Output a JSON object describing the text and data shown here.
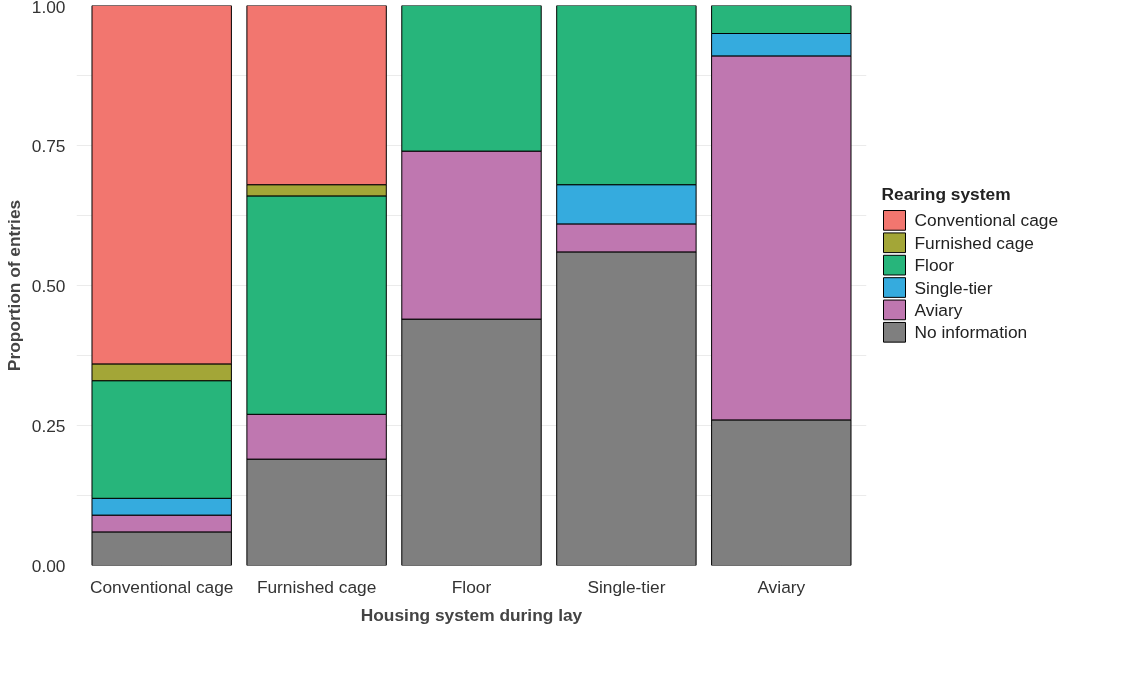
{
  "chart_data": {
    "type": "bar",
    "stacked": true,
    "xlabel": "Housing system during lay",
    "ylabel": "Proportion of entries",
    "legend_title": "Rearing system",
    "legend": "right",
    "grid": true,
    "categories": [
      "Conventional cage",
      "Furnished cage",
      "Floor",
      "Single-tier",
      "Aviary"
    ],
    "ylim": [
      0,
      1.0
    ],
    "yticks": [
      {
        "value": 0,
        "label": "0.00"
      },
      {
        "value": 0.125,
        "label": null
      },
      {
        "value": 0.25,
        "label": "0.25"
      },
      {
        "value": 0.375,
        "label": null
      },
      {
        "value": 0.5,
        "label": "0.50"
      },
      {
        "value": 0.625,
        "label": null
      },
      {
        "value": 0.75,
        "label": "0.75"
      },
      {
        "value": 0.875,
        "label": null
      },
      {
        "value": 1.0,
        "label": "1.00"
      }
    ],
    "series": [
      {
        "name": "No information",
        "color": "#7f7f7f",
        "values": [
          0.06,
          0.19,
          0.44,
          0.56,
          0.26
        ]
      },
      {
        "name": "Aviary",
        "color": "#bf77b0",
        "values": [
          0.03,
          0.08,
          0.3,
          0.05,
          0.65
        ]
      },
      {
        "name": "Single-tier",
        "color": "#35abde",
        "values": [
          0.03,
          0.0,
          0.0,
          0.07,
          0.04
        ]
      },
      {
        "name": "Floor",
        "color": "#27b57b",
        "values": [
          0.21,
          0.39,
          0.26,
          0.32,
          0.05
        ]
      },
      {
        "name": "Furnished cage",
        "color": "#a3a637",
        "values": [
          0.03,
          0.02,
          0.0,
          0.0,
          0.0
        ]
      },
      {
        "name": "Conventional cage",
        "color": "#f2766f",
        "values": [
          0.64,
          0.32,
          0.0,
          0.0,
          0.0
        ]
      }
    ]
  }
}
